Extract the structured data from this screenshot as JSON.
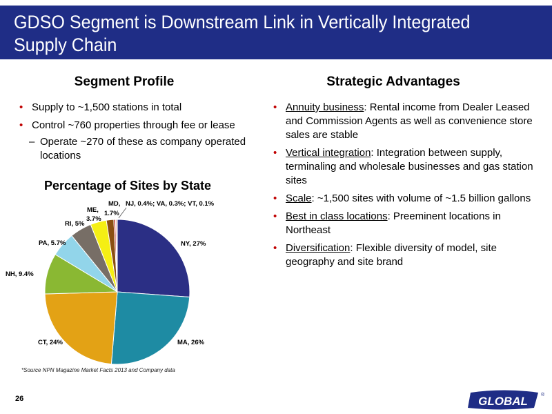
{
  "title": "GDSO Segment is Downstream Link in Vertically Integrated Supply Chain",
  "left": {
    "heading": "Segment Profile",
    "bullets": [
      "Supply to ~1,500 stations in total",
      "Control ~760 properties through fee or lease"
    ],
    "sub_bullet": "Operate ~270 of these as company operated locations"
  },
  "right": {
    "heading": "Strategic Advantages",
    "items": [
      {
        "term": "Annuity business",
        "rest": ":  Rental income from Dealer Leased and Commission Agents as well as convenience store sales are stable"
      },
      {
        "term": "Vertical integration",
        "rest": ": Integration between supply, terminaling and wholesale businesses and gas station sites"
      },
      {
        "term": "Scale",
        "rest": ": ~1,500 sites with volume of ~1.5 billion gallons"
      },
      {
        "term": "Best in class locations",
        "rest": ":  Preeminent locations in Northeast"
      },
      {
        "term": "Diversification",
        "rest": ":  Flexible diversity of model, site geography and site brand"
      }
    ]
  },
  "chart_data": {
    "type": "pie",
    "title": "Percentage of Sites by State",
    "slices": [
      {
        "label": "NY, 27%",
        "value": 27,
        "color": "#2b2f85"
      },
      {
        "label": "MA, 26%",
        "value": 26,
        "color": "#1e8ba3"
      },
      {
        "label": "CT, 24%",
        "value": 24,
        "color": "#e3a215"
      },
      {
        "label": "NH, 9.4%",
        "value": 9.4,
        "color": "#8ab833"
      },
      {
        "label": "PA, 5.7%",
        "value": 5.7,
        "color": "#92d5ea"
      },
      {
        "label": "RI, 5%",
        "value": 5,
        "color": "#776e66"
      },
      {
        "label": "ME, 3.7%",
        "value": 3.7,
        "color": "#f5ef14"
      },
      {
        "label": "MD, 1.7%",
        "value": 1.7,
        "color": "#8a4f12"
      },
      {
        "label": "NJ",
        "value": 0.4,
        "color": "#c0392b"
      },
      {
        "label": "VA",
        "value": 0.3,
        "color": "#e8a090"
      },
      {
        "label": "VT",
        "value": 0.1,
        "color": "#999999"
      }
    ],
    "small_label": "NJ, 0.4%; VA, 0.3%; VT, 0.1%"
  },
  "source": "*Source NPN Magazine Market Facts 2013 and Company data",
  "page_number": "26",
  "logo_text": "GLOBAL",
  "logo_mark": "®"
}
